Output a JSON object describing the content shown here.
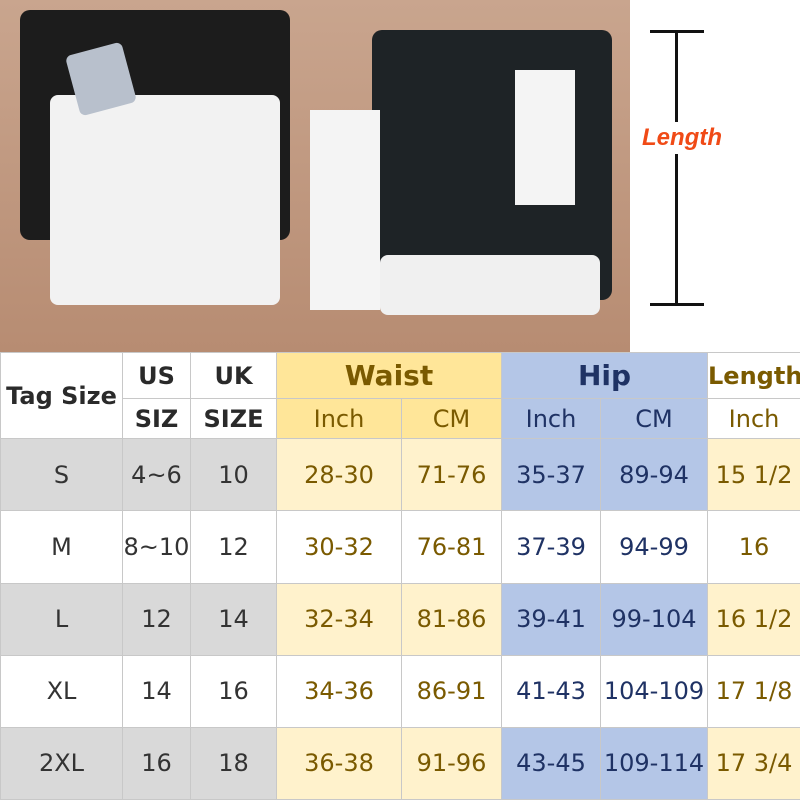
{
  "annotation": {
    "length_label": "Length",
    "color": "#f04a16"
  },
  "colors": {
    "gray_row": "#d9d9d9",
    "waist_header": "#ffe699",
    "waist_body": "#fff2cc",
    "hip": "#b4c6e7"
  },
  "table": {
    "headers": {
      "tag_size": "Tag Size",
      "us_size": [
        "US",
        "SIZ"
      ],
      "uk_size": [
        "UK",
        "SIZE"
      ],
      "waist": "Waist",
      "hip": "Hip",
      "length": "Length",
      "waist_sub": [
        "Inch",
        "CM"
      ],
      "hip_sub": [
        "Inch",
        "CM"
      ],
      "length_sub": "Inch"
    },
    "rows": [
      [
        "S",
        "4~6",
        "10",
        "28-30",
        "71-76",
        "35-37",
        "89-94",
        "15 1/2"
      ],
      [
        "M",
        "8~10",
        "12",
        "30-32",
        "76-81",
        "37-39",
        "94-99",
        "16"
      ],
      [
        "L",
        "12",
        "14",
        "32-34",
        "81-86",
        "39-41",
        "99-104",
        "16 1/2"
      ],
      [
        "XL",
        "14",
        "16",
        "34-36",
        "86-91",
        "41-43",
        "104-109",
        "17 1/8"
      ],
      [
        "2XL",
        "16",
        "18",
        "36-38",
        "91-96",
        "43-45",
        "109-114",
        "17 3/4"
      ]
    ]
  }
}
